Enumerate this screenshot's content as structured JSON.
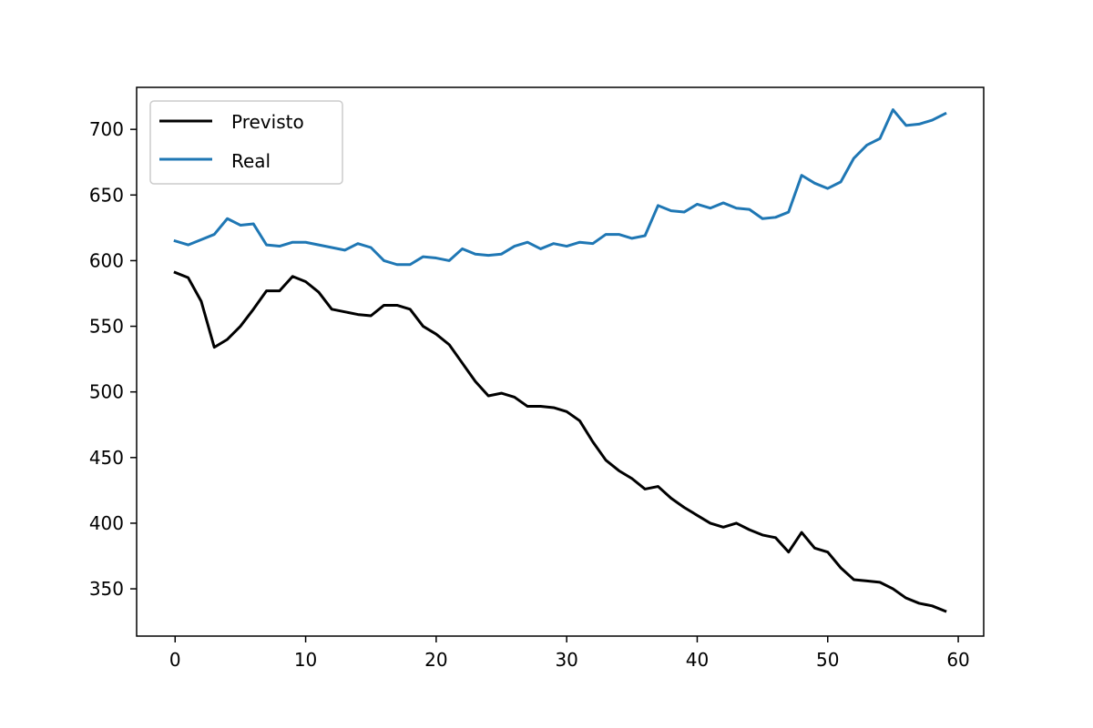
{
  "chart_data": {
    "type": "line",
    "title": "",
    "xlabel": "",
    "ylabel": "",
    "xlim": [
      -2.95,
      61.95
    ],
    "ylim": [
      314,
      732
    ],
    "grid": false,
    "legend_position": "upper-left",
    "x_ticks": [
      0,
      10,
      20,
      30,
      40,
      50,
      60
    ],
    "y_ticks": [
      350,
      400,
      450,
      500,
      550,
      600,
      650,
      700
    ],
    "x": [
      0,
      1,
      2,
      3,
      4,
      5,
      6,
      7,
      8,
      9,
      10,
      11,
      12,
      13,
      14,
      15,
      16,
      17,
      18,
      19,
      20,
      21,
      22,
      23,
      24,
      25,
      26,
      27,
      28,
      29,
      30,
      31,
      32,
      33,
      34,
      35,
      36,
      37,
      38,
      39,
      40,
      41,
      42,
      43,
      44,
      45,
      46,
      47,
      48,
      49,
      50,
      51,
      52,
      53,
      54,
      55,
      56,
      57,
      58,
      59
    ],
    "series": [
      {
        "name": "Previsto",
        "color": "#000000",
        "values": [
          591,
          587,
          569,
          534,
          540,
          550,
          563,
          577,
          577,
          588,
          584,
          576,
          563,
          561,
          559,
          558,
          566,
          566,
          563,
          550,
          544,
          536,
          522,
          508,
          497,
          499,
          496,
          489,
          489,
          488,
          485,
          478,
          462,
          448,
          440,
          434,
          426,
          428,
          419,
          412,
          406,
          400,
          397,
          400,
          395,
          391,
          389,
          378,
          393,
          381,
          378,
          366,
          357,
          356,
          355,
          350,
          343,
          339,
          337,
          333
        ]
      },
      {
        "name": "Real",
        "color": "#1f77b4",
        "values": [
          615,
          612,
          616,
          620,
          632,
          627,
          628,
          612,
          611,
          614,
          614,
          612,
          610,
          608,
          613,
          610,
          600,
          597,
          597,
          603,
          602,
          600,
          609,
          605,
          604,
          605,
          611,
          614,
          609,
          613,
          611,
          614,
          613,
          620,
          620,
          617,
          619,
          642,
          638,
          637,
          643,
          640,
          644,
          640,
          639,
          632,
          633,
          637,
          665,
          659,
          655,
          660,
          678,
          688,
          693,
          715,
          703,
          704,
          707,
          712
        ]
      }
    ]
  }
}
